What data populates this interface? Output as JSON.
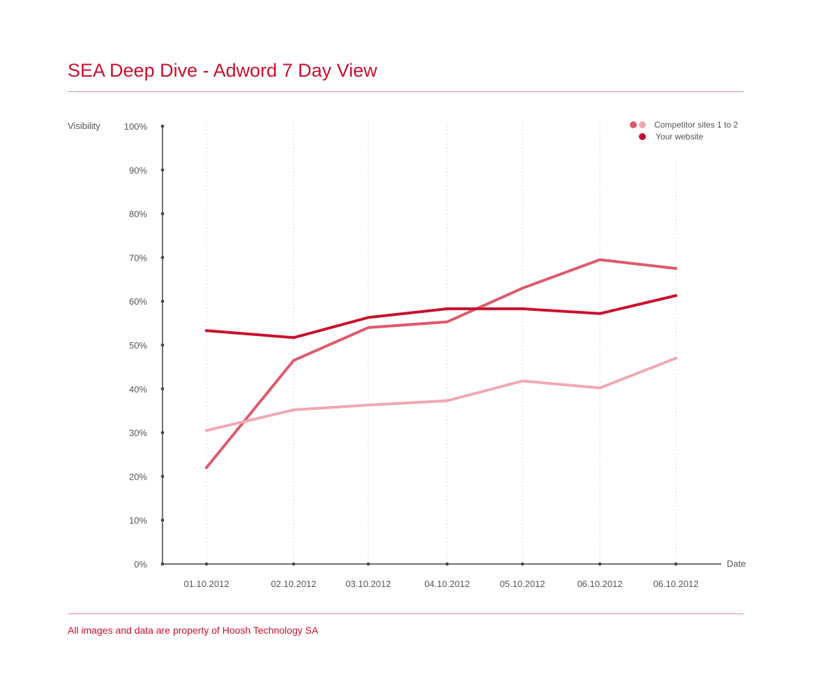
{
  "header": {
    "title": "SEA Deep Dive - Adword 7 Day View"
  },
  "footer": {
    "text": "All images and data are property of Hoosh Technology SA"
  },
  "colors": {
    "accent": "#c8102e",
    "competitor_1": "#dd5a6c",
    "competitor_2": "#f0a8b2",
    "your_website": "#c8102e",
    "axis": "#444444",
    "grid": "#d8d8d8"
  },
  "chart_data": {
    "type": "line",
    "title": "SEA Deep Dive - Adword 7 Day View",
    "ylabel": "Visibility",
    "xlabel": "Date",
    "ylim": [
      0,
      100
    ],
    "y_ticks": [
      "0%",
      "10%",
      "20%",
      "30%",
      "40%",
      "50%",
      "60%",
      "70%",
      "80%",
      "90%",
      "100%"
    ],
    "categories": [
      "01.10.2012",
      "02.10.2012",
      "03.10.2012",
      "04.10.2012",
      "05.10.2012",
      "06.10.2012",
      "06.10.2012"
    ],
    "grid": "vertical dotted lines at each date",
    "legend_position": "top-right",
    "legend": [
      {
        "label": "Competitor sites 1 to 2",
        "swatches": [
          "#dd5a6c",
          "#f0a8b2"
        ]
      },
      {
        "label": "Your website",
        "swatches": [
          "#c8102e"
        ]
      }
    ],
    "series": [
      {
        "key": "competitor_1",
        "values": [
          22,
          46.5,
          54,
          55.3,
          63,
          69.5,
          67.5
        ]
      },
      {
        "key": "competitor_2",
        "values": [
          30.5,
          35.2,
          36.3,
          37.3,
          41.8,
          40.2,
          47
        ]
      },
      {
        "key": "your_website",
        "values": [
          53.3,
          51.7,
          56.3,
          58.3,
          58.3,
          57.2,
          61.3
        ]
      }
    ]
  }
}
